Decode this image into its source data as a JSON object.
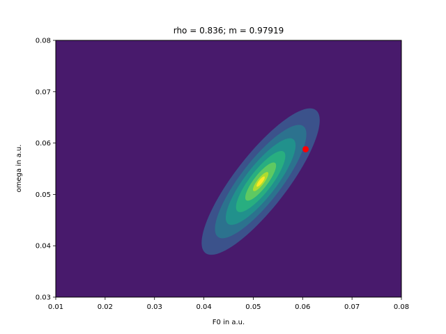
{
  "chart_data": {
    "type": "contour",
    "title": "rho = 0.836;  m = 0.97919",
    "xlabel": "F0 in a.u.",
    "ylabel": "omega in a.u.",
    "xlim": [
      0.01,
      0.08
    ],
    "ylim": [
      0.03,
      0.08
    ],
    "xticks": [
      "0.01",
      "0.02",
      "0.03",
      "0.04",
      "0.05",
      "0.06",
      "0.07",
      "0.08"
    ],
    "yticks": [
      "0.03",
      "0.04",
      "0.05",
      "0.06",
      "0.07",
      "0.08"
    ],
    "grid": false,
    "colormap": "viridis",
    "background_color": "#481a6c",
    "distribution": {
      "center": [
        0.0515,
        0.0525
      ],
      "sigma_x": 0.0052,
      "sigma_y": 0.0062,
      "rho": 0.836
    },
    "contour_levels": [
      {
        "mahalanobis": 2.3,
        "color": "#3b528b"
      },
      {
        "mahalanobis": 1.78,
        "color": "#2c728e"
      },
      {
        "mahalanobis": 1.36,
        "color": "#21918c"
      },
      {
        "mahalanobis": 0.96,
        "color": "#28ae80"
      },
      {
        "mahalanobis": 0.6,
        "color": "#5ec962"
      },
      {
        "mahalanobis": 0.3,
        "color": "#addc30"
      },
      {
        "mahalanobis": 0.16,
        "color": "#fde725"
      }
    ],
    "marker": {
      "x": 0.0606,
      "y": 0.0588,
      "color": "#ff0000"
    }
  }
}
